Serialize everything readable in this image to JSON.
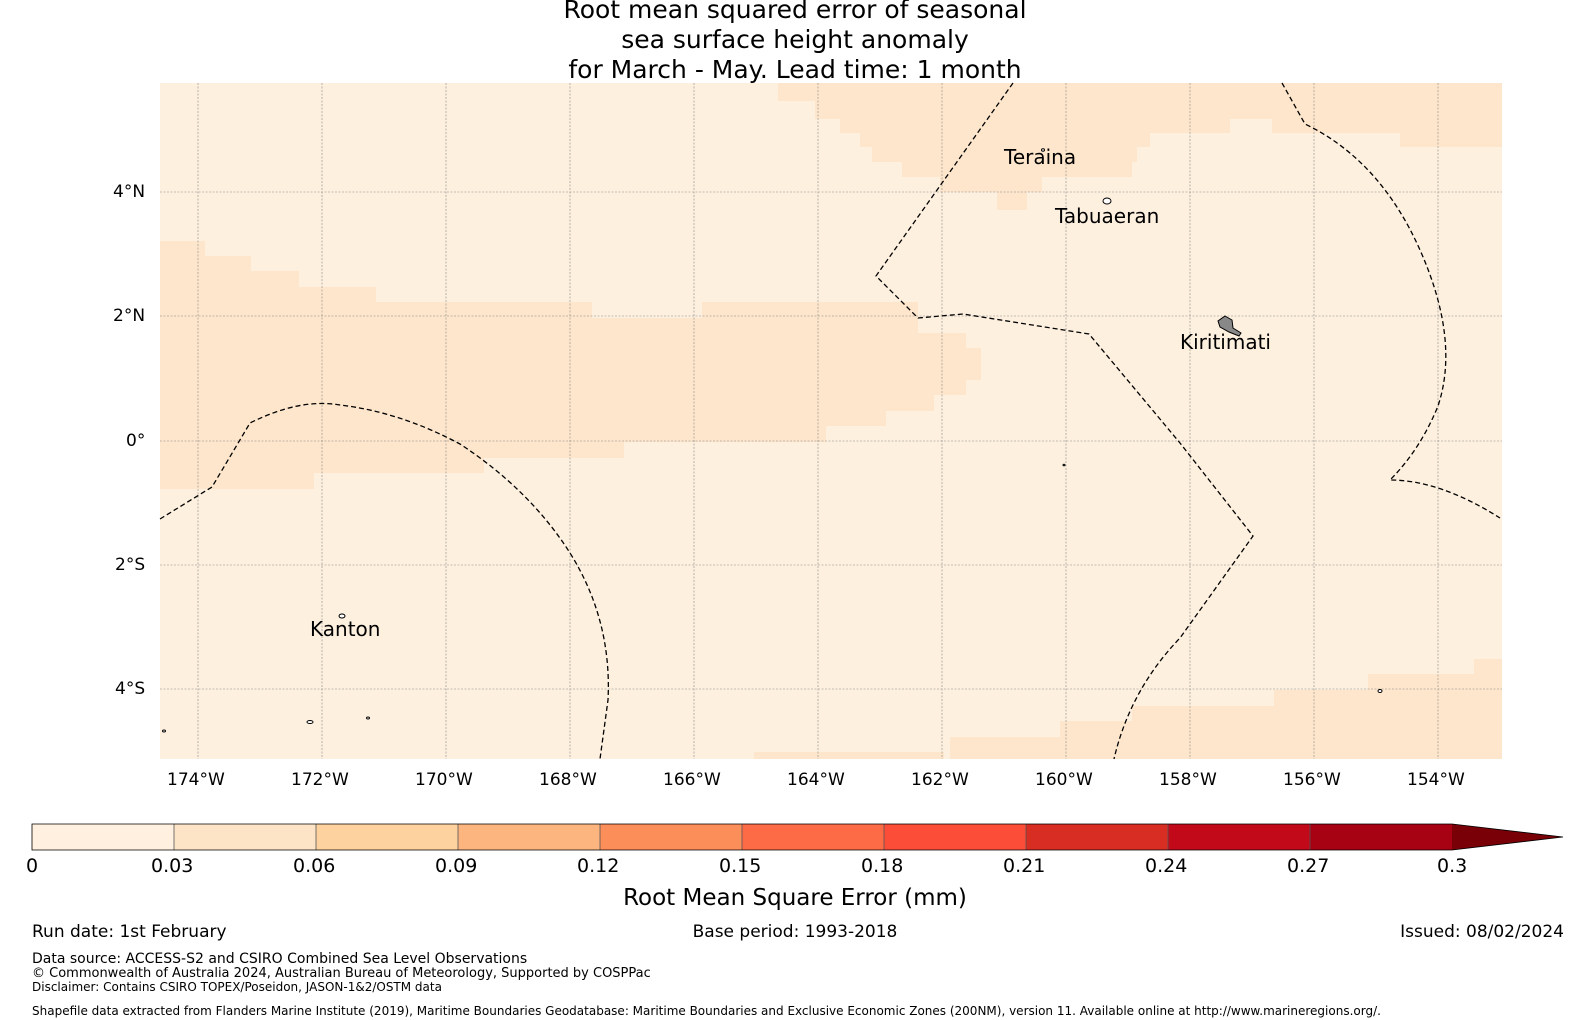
{
  "title": {
    "line1": "Root mean squared error of seasonal",
    "line2": "sea surface height anomaly",
    "line3": "for March - May. Lead time: 1 month"
  },
  "map": {
    "lat_ticks": [
      "4°N",
      "2°N",
      "0°",
      "2°S",
      "4°S"
    ],
    "lon_ticks": [
      "174°W",
      "172°W",
      "170°W",
      "168°W",
      "166°W",
      "164°W",
      "162°W",
      "160°W",
      "158°W",
      "156°W",
      "154°W"
    ],
    "places": [
      "Teraina",
      "Tabuaeran",
      "Kiritimati",
      "Kanton"
    ],
    "colors": {
      "field_low": "#fef0df",
      "field_mid": "#fde6cb",
      "boundary": "#000000",
      "grid": "#888888"
    }
  },
  "colorbar": {
    "label": "Root Mean Square Error (mm)",
    "ticks": [
      "0",
      "0.03",
      "0.06",
      "0.09",
      "0.12",
      "0.15",
      "0.18",
      "0.21",
      "0.24",
      "0.27",
      "0.3"
    ],
    "colors": [
      "#fff0df",
      "#fee4c6",
      "#fdd29e",
      "#fcb57f",
      "#fc8e59",
      "#fc6b46",
      "#fb4d38",
      "#d72d23",
      "#c2091a",
      "#a70114",
      "#7a0008"
    ]
  },
  "footer": {
    "run_date": "Run date: 1st February",
    "base_period": "Base period: 1993-2018",
    "issued": "Issued: 08/02/2024",
    "data_source": "Data source: ACCESS-S2 and CSIRO Combined Sea Level Observations",
    "copyright": "© Commonwealth of Australia 2024, Australian Bureau of Meteorology, Supported by COSPPac",
    "disclaimer": "Disclaimer: Contains CSIRO TOPEX/Poseidon, JASON-1&2/OSTM data",
    "shapefile": "Shapefile data extracted from Flanders Marine Institute (2019), Maritime Boundaries Geodatabase: Maritime Boundaries and Exclusive Economic Zones (200NM), version 11. Available online at http://www.marineregions.org/."
  }
}
